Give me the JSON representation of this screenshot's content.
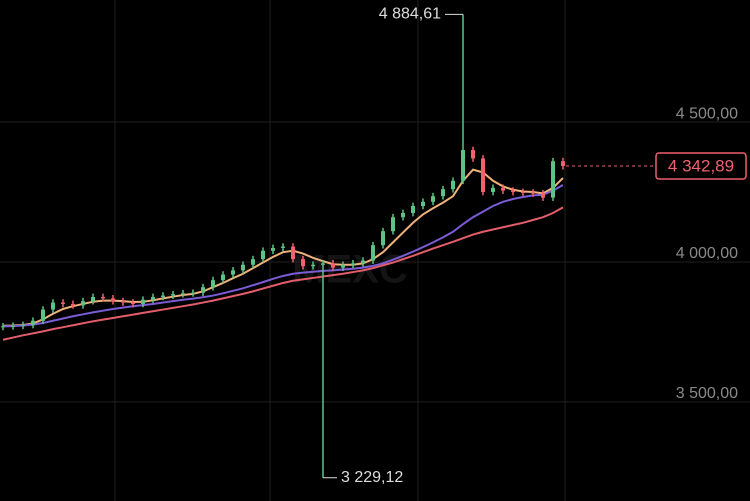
{
  "chart_data": {
    "type": "candlestick",
    "watermark": "MEXC",
    "ylim": [
      3146,
      4936
    ],
    "yticks": [
      {
        "value": 3500,
        "label": "3 500,00"
      },
      {
        "value": 4000,
        "label": "4 000,00"
      },
      {
        "value": 4500,
        "label": "4 500,00"
      }
    ],
    "grid": true,
    "up_color": "#5cc285",
    "down_color": "#f0616d",
    "open": [
      3768,
      3770,
      3772,
      3775,
      3790,
      3830,
      3855,
      3850,
      3845,
      3860,
      3875,
      3870,
      3860,
      3855,
      3850,
      3865,
      3875,
      3880,
      3885,
      3888,
      3890,
      3910,
      3935,
      3955,
      3970,
      3990,
      4010,
      4040,
      4050,
      4055,
      4010,
      3985,
      3990,
      3995,
      3980,
      3990,
      3995,
      4005,
      4060,
      4110,
      4160,
      4175,
      4200,
      4215,
      4235,
      4260,
      4290,
      4400,
      4370,
      4250,
      4265,
      4255,
      4250,
      4248,
      4245,
      4230,
      4360
    ],
    "high": [
      3782,
      3784,
      3787,
      3802,
      3842,
      3867,
      3867,
      3862,
      3872,
      3887,
      3887,
      3882,
      3872,
      3867,
      3877,
      3887,
      3892,
      3897,
      3900,
      3902,
      3922,
      3947,
      3967,
      3982,
      4002,
      4022,
      4052,
      4062,
      4067,
      4067,
      4022,
      4002,
      4007,
      4007,
      4002,
      4007,
      4017,
      4072,
      4122,
      4172,
      4187,
      4212,
      4227,
      4247,
      4272,
      4302,
      4884.61,
      4412,
      4382,
      4277,
      4277,
      4267,
      4262,
      4260,
      4257,
      4372,
      4372
    ],
    "low": [
      3756,
      3758,
      3760,
      3763,
      3778,
      3818,
      3838,
      3833,
      3833,
      3848,
      3858,
      3848,
      3843,
      3838,
      3838,
      3853,
      3863,
      3868,
      3873,
      3876,
      3878,
      3898,
      3923,
      3943,
      3958,
      3978,
      3998,
      4028,
      4038,
      3998,
      3973,
      3973,
      3229.12,
      3968,
      3968,
      3978,
      3983,
      3993,
      4048,
      4098,
      4148,
      4163,
      4188,
      4203,
      4223,
      4248,
      4278,
      4358,
      4238,
      4238,
      4243,
      4238,
      4236,
      4233,
      4218,
      4218,
      4330
    ],
    "close": [
      3770,
      3772,
      3775,
      3790,
      3830,
      3855,
      3850,
      3845,
      3860,
      3875,
      3870,
      3860,
      3855,
      3850,
      3865,
      3875,
      3880,
      3885,
      3888,
      3890,
      3910,
      3935,
      3955,
      3970,
      3990,
      4010,
      4040,
      4050,
      4055,
      4010,
      3985,
      3990,
      3995,
      3980,
      3990,
      3995,
      4005,
      4060,
      4110,
      4160,
      4175,
      4200,
      4215,
      4235,
      4260,
      4290,
      4400,
      4370,
      4250,
      4265,
      4255,
      4250,
      4248,
      4245,
      4230,
      4360,
      4342.89
    ],
    "series": [
      {
        "color": "#f0b27a",
        "values": [
          3772,
          3773,
          3775,
          3780,
          3795,
          3815,
          3832,
          3842,
          3850,
          3858,
          3862,
          3862,
          3860,
          3857,
          3858,
          3863,
          3870,
          3876,
          3882,
          3886,
          3895,
          3910,
          3925,
          3942,
          3958,
          3978,
          3998,
          4018,
          4035,
          4040,
          4030,
          4015,
          4003,
          3992,
          3990,
          3990,
          3995,
          4010,
          4035,
          4070,
          4105,
          4140,
          4170,
          4192,
          4212,
          4235,
          4290,
          4330,
          4320,
          4290,
          4270,
          4258,
          4252,
          4250,
          4245,
          4265,
          4300
        ]
      },
      {
        "color": "#7b5cd6",
        "values": [
          3770,
          3771,
          3773,
          3776,
          3782,
          3790,
          3798,
          3806,
          3813,
          3820,
          3826,
          3832,
          3837,
          3842,
          3846,
          3850,
          3855,
          3860,
          3865,
          3869,
          3874,
          3880,
          3888,
          3897,
          3906,
          3917,
          3928,
          3940,
          3950,
          3958,
          3962,
          3965,
          3968,
          3970,
          3973,
          3976,
          3980,
          3986,
          3995,
          4008,
          4022,
          4037,
          4053,
          4070,
          4088,
          4108,
          4135,
          4160,
          4180,
          4200,
          4215,
          4225,
          4232,
          4238,
          4240,
          4255,
          4275
        ]
      },
      {
        "color": "#e35d6a",
        "values": [
          3722,
          3730,
          3738,
          3745,
          3752,
          3760,
          3767,
          3774,
          3781,
          3788,
          3794,
          3800,
          3806,
          3812,
          3818,
          3824,
          3830,
          3836,
          3842,
          3848,
          3855,
          3862,
          3870,
          3878,
          3886,
          3895,
          3905,
          3915,
          3925,
          3933,
          3938,
          3943,
          3948,
          3953,
          3958,
          3964,
          3970,
          3978,
          3988,
          3998,
          4010,
          4022,
          4035,
          4048,
          4060,
          4072,
          4085,
          4098,
          4108,
          4116,
          4124,
          4132,
          4140,
          4150,
          4160,
          4175,
          4195
        ]
      }
    ],
    "max_label": "4 884,61",
    "min_label": "3 229,12",
    "last_label": "4 342,89"
  }
}
